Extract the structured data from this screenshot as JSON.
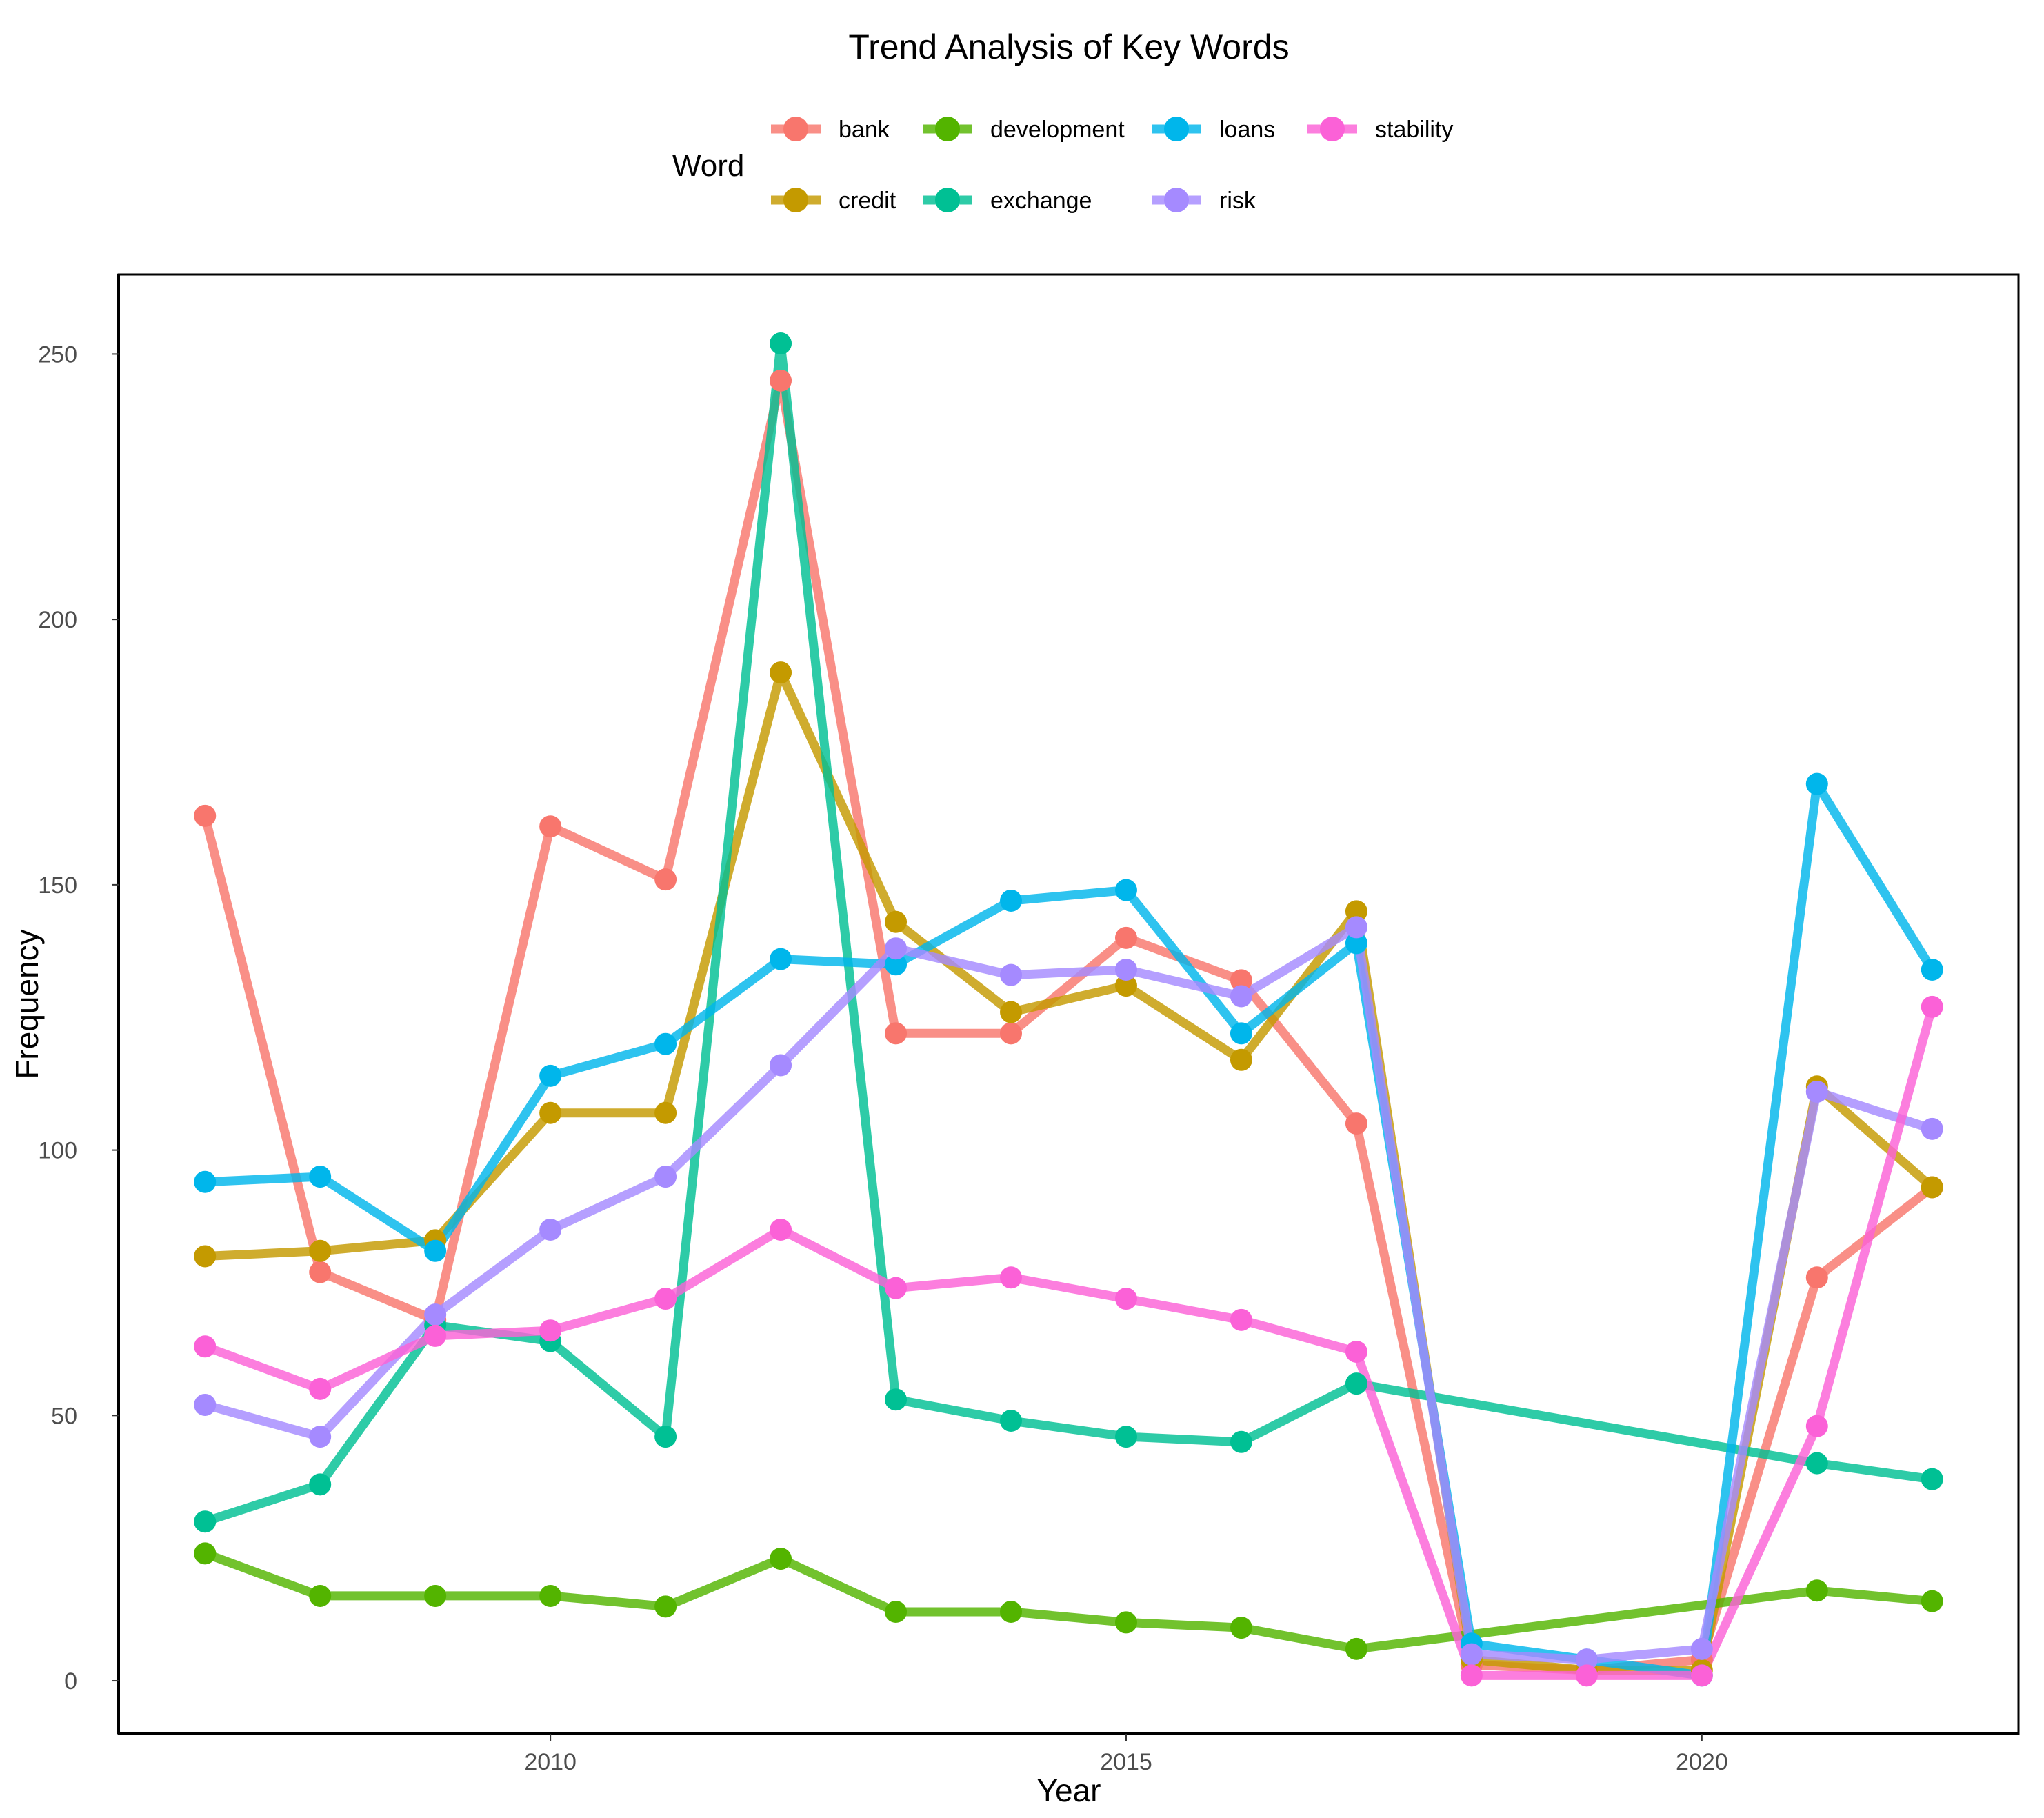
{
  "chart_data": {
    "type": "line",
    "title": "Trend Analysis of Key Words",
    "xlabel": "Year",
    "ylabel": "Frequency",
    "xlim": [
      2006.25,
      2022.75
    ],
    "ylim": [
      -10,
      265
    ],
    "x_ticks": [
      2010,
      2015,
      2020
    ],
    "y_ticks": [
      0,
      50,
      100,
      150,
      200,
      250
    ],
    "grid": false,
    "legend": {
      "title": "Word",
      "position": "top"
    },
    "series": [
      {
        "name": "bank",
        "color": "#F8766D",
        "x": [
          2007,
          2008,
          2009,
          2010,
          2011,
          2012,
          2013,
          2014,
          2015,
          2016,
          2017,
          2018,
          2019,
          2020,
          2021,
          2022
        ],
        "values": [
          163,
          77,
          68,
          161,
          151,
          245,
          122,
          122,
          140,
          132,
          105,
          3,
          2,
          4,
          76,
          93
        ]
      },
      {
        "name": "credit",
        "color": "#C49A00",
        "x": [
          2007,
          2008,
          2009,
          2010,
          2011,
          2012,
          2013,
          2014,
          2015,
          2016,
          2017,
          2018,
          2019,
          2020,
          2021,
          2022
        ],
        "values": [
          80,
          81,
          83,
          107,
          107,
          190,
          143,
          126,
          131,
          117,
          145,
          4,
          2,
          2,
          112,
          93
        ]
      },
      {
        "name": "development",
        "color": "#53B400",
        "x": [
          2007,
          2008,
          2009,
          2010,
          2011,
          2012,
          2013,
          2014,
          2015,
          2016,
          2017,
          2021,
          2022
        ],
        "values": [
          24,
          16,
          16,
          16,
          14,
          23,
          13,
          13,
          11,
          10,
          6,
          17,
          15
        ]
      },
      {
        "name": "exchange",
        "color": "#00C094",
        "x": [
          2007,
          2008,
          2009,
          2010,
          2011,
          2012,
          2013,
          2014,
          2015,
          2016,
          2017,
          2021,
          2022
        ],
        "values": [
          30,
          37,
          67,
          64,
          46,
          252,
          53,
          49,
          46,
          45,
          56,
          41,
          38
        ]
      },
      {
        "name": "loans",
        "color": "#00B6EB",
        "x": [
          2007,
          2008,
          2009,
          2010,
          2011,
          2012,
          2013,
          2014,
          2015,
          2016,
          2017,
          2018,
          2019,
          2020,
          2021,
          2022
        ],
        "values": [
          94,
          95,
          81,
          114,
          120,
          136,
          135,
          147,
          149,
          122,
          139,
          7,
          4,
          1,
          169,
          134
        ]
      },
      {
        "name": "risk",
        "color": "#A58AFF",
        "x": [
          2007,
          2008,
          2009,
          2010,
          2011,
          2012,
          2013,
          2014,
          2015,
          2016,
          2017,
          2018,
          2019,
          2020,
          2021,
          2022
        ],
        "values": [
          52,
          46,
          69,
          85,
          95,
          116,
          138,
          133,
          134,
          129,
          142,
          5,
          4,
          6,
          111,
          104
        ]
      },
      {
        "name": "stability",
        "color": "#FB61D7",
        "x": [
          2007,
          2008,
          2009,
          2010,
          2011,
          2012,
          2013,
          2014,
          2015,
          2016,
          2017,
          2018,
          2019,
          2020,
          2021,
          2022
        ],
        "values": [
          63,
          55,
          65,
          66,
          72,
          85,
          74,
          76,
          72,
          68,
          62,
          1,
          1,
          1,
          48,
          127
        ]
      }
    ]
  }
}
